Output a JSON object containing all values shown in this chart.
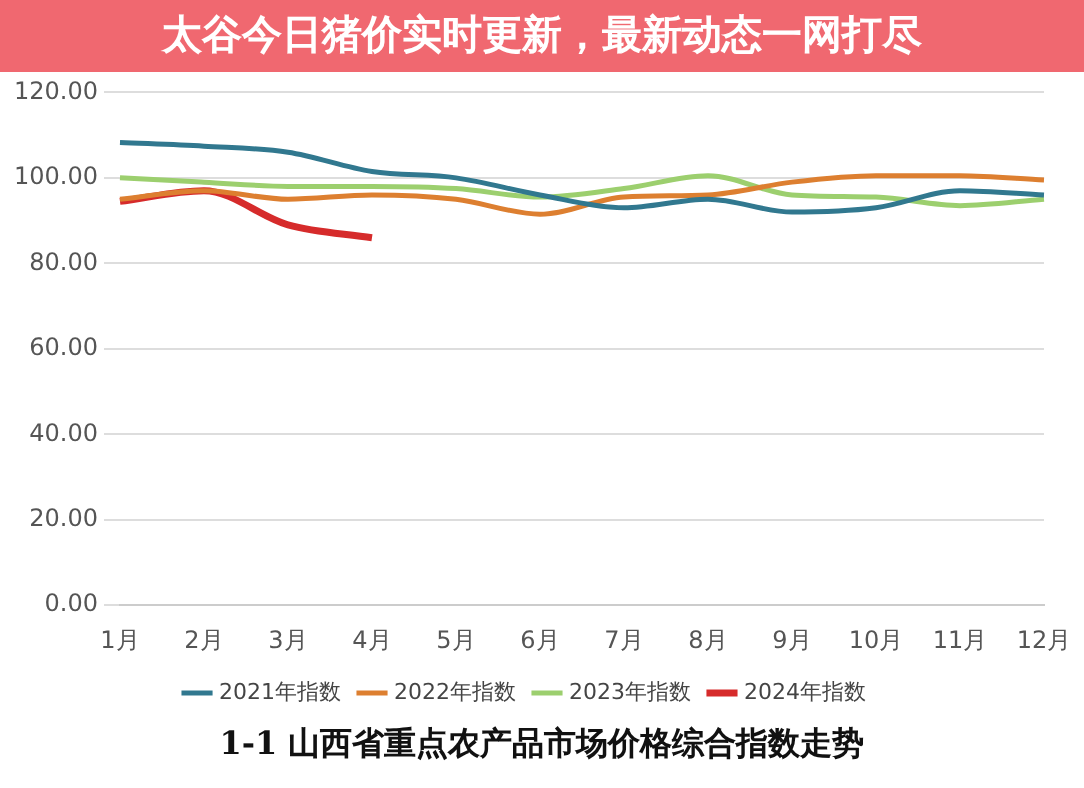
{
  "chart_data": {
    "type": "line",
    "title": "太谷今日猪价实时更新，最新动态一网打尽",
    "annotations": [
      "1-1 山西省重点农产品市场价格综合指数走势"
    ],
    "categories": [
      "1月",
      "2月",
      "3月",
      "4月",
      "5月",
      "6月",
      "7月",
      "8月",
      "9月",
      "10月",
      "11月",
      "12月"
    ],
    "ylim": [
      0,
      120
    ],
    "yticks": [
      {
        "value": 0,
        "label": "0.00"
      },
      {
        "value": 20,
        "label": "20.00"
      },
      {
        "value": 40,
        "label": "40.00"
      },
      {
        "value": 60,
        "label": "60.00"
      },
      {
        "value": 80,
        "label": "80.00"
      },
      {
        "value": 100,
        "label": "100.00"
      },
      {
        "value": 120,
        "label": "120.00"
      }
    ],
    "grid": "y",
    "legend": "bottom",
    "marker": "none",
    "line_style": "solid",
    "series": [
      {
        "name": "2021年指数",
        "color": "#31788f",
        "values": [
          108.3,
          107.4,
          106,
          101.5,
          100,
          96,
          93,
          95,
          92,
          93,
          97,
          96
        ]
      },
      {
        "name": "2022年指数",
        "color": "#dd7f30",
        "values": [
          95,
          97,
          95,
          96,
          95,
          91.5,
          95.5,
          96,
          99,
          100.5,
          100.5,
          99.5
        ]
      },
      {
        "name": "2023年指数",
        "color": "#9ccf6e",
        "values": [
          100,
          99,
          98,
          98,
          97.5,
          95.5,
          97.5,
          100.5,
          96,
          95.5,
          93.5,
          95
        ]
      },
      {
        "name": "2024年指数",
        "color": "#d62b2b",
        "values": [
          94.5,
          97,
          89,
          86,
          null,
          null,
          null,
          null,
          null,
          null,
          null,
          null
        ]
      }
    ]
  }
}
